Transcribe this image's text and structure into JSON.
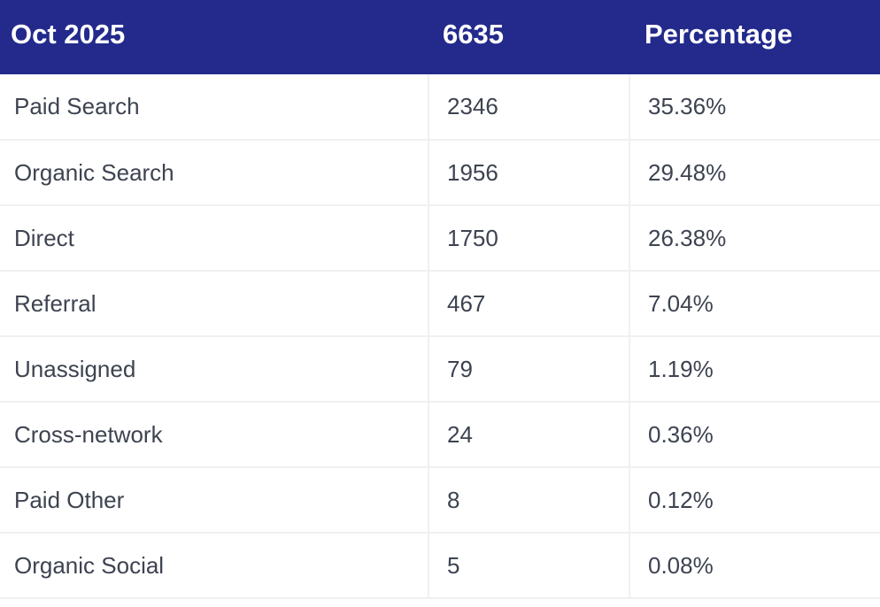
{
  "table": {
    "header": [
      "Oct 2025",
      "6635",
      "Percentage"
    ],
    "rows": [
      [
        "Paid Search",
        "2346",
        "35.36%"
      ],
      [
        "Organic Search",
        "1956",
        "29.48%"
      ],
      [
        "Direct",
        "1750",
        "26.38%"
      ],
      [
        "Referral",
        "467",
        "7.04%"
      ],
      [
        "Unassigned",
        "79",
        "1.19%"
      ],
      [
        "Cross-network",
        "24",
        "0.36%"
      ],
      [
        "Paid Other",
        "8",
        "0.12%"
      ],
      [
        "Organic Social",
        "5",
        "0.08%"
      ]
    ]
  }
}
